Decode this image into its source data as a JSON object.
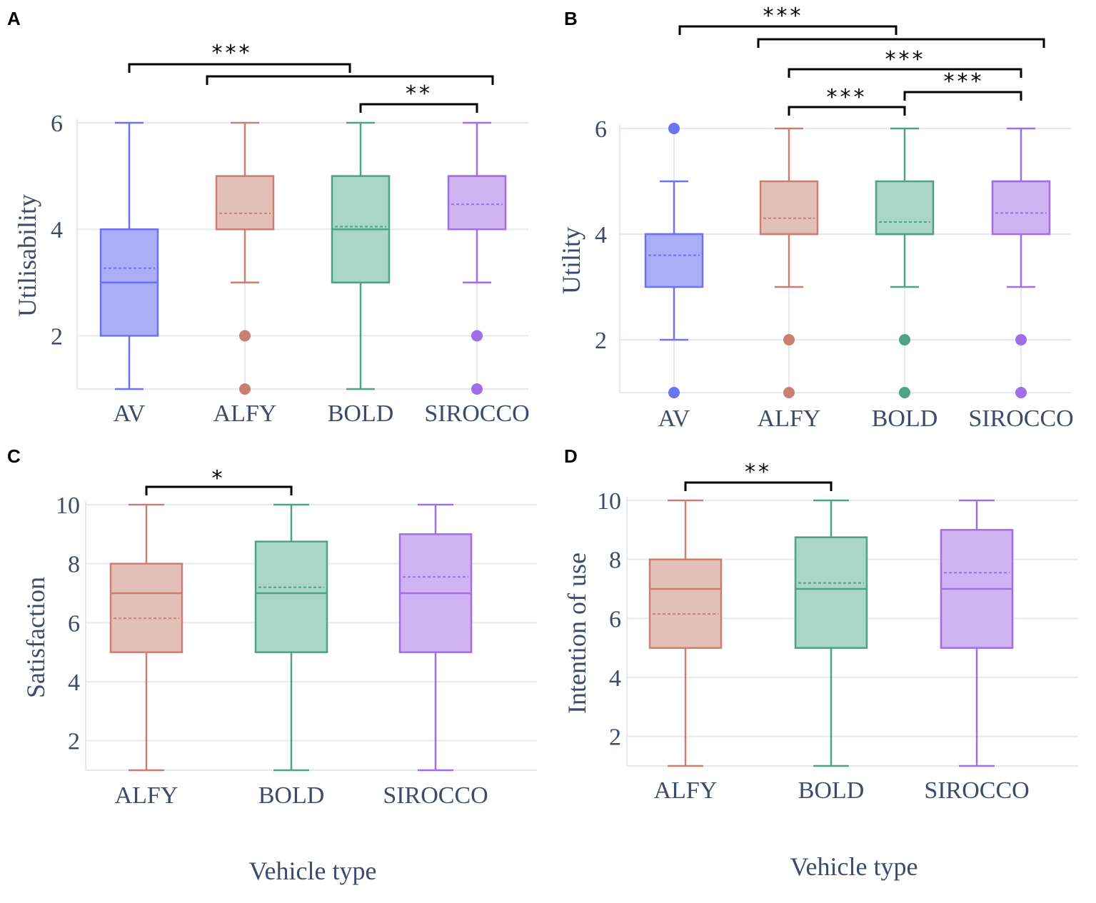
{
  "colors": {
    "AV": {
      "line": "#6b73f0",
      "fill": "#a9aef7"
    },
    "ALFY": {
      "line": "#c97f72",
      "fill": "#e2c0b8"
    },
    "BOLD": {
      "line": "#4fa187",
      "fill": "#a9d6c6"
    },
    "SIROCCO": {
      "line": "#a06ee6",
      "fill": "#cfb3f2"
    },
    "grid": "#e6e9f4",
    "text": "#3d4a6b"
  },
  "chart_data": [
    {
      "panel": "A",
      "type": "box",
      "ylabel": "Utilisability",
      "xlabel": "",
      "ylim": [
        1,
        6
      ],
      "yticks": [
        2,
        4,
        6
      ],
      "categories": [
        "AV",
        "ALFY",
        "BOLD",
        "SIROCCO"
      ],
      "boxes": [
        {
          "min": 1,
          "q1": 2,
          "median": 3,
          "q3": 4,
          "max": 6,
          "mean": 3.27,
          "outliers": []
        },
        {
          "min": 3,
          "q1": 4,
          "median": 4,
          "q3": 5,
          "max": 6,
          "mean": 4.3,
          "outliers": [
            2,
            1
          ]
        },
        {
          "min": 1,
          "q1": 3,
          "median": 4,
          "q3": 5,
          "max": 6,
          "mean": 4.05,
          "outliers": []
        },
        {
          "min": 3,
          "q1": 4,
          "median": 5,
          "q3": 5,
          "max": 6,
          "mean": 4.47,
          "outliers": [
            2,
            1
          ]
        }
      ],
      "significance": [
        {
          "from": "AV",
          "to": [
            "ALFY",
            "SIROCCO"
          ],
          "label": "***"
        },
        {
          "from": "BOLD",
          "to": "SIROCCO",
          "label": "**"
        }
      ]
    },
    {
      "panel": "B",
      "type": "box",
      "ylabel": "Utility",
      "xlabel": "",
      "ylim": [
        1,
        6
      ],
      "yticks": [
        2,
        4,
        6
      ],
      "categories": [
        "AV",
        "ALFY",
        "BOLD",
        "SIROCCO"
      ],
      "boxes": [
        {
          "min": 2,
          "q1": 3,
          "median": 4,
          "q3": 4,
          "max": 5,
          "mean": 3.6,
          "outliers": [
            6,
            1
          ]
        },
        {
          "min": 3,
          "q1": 4,
          "median": 4,
          "q3": 5,
          "max": 6,
          "mean": 4.3,
          "outliers": [
            2,
            1
          ]
        },
        {
          "min": 3,
          "q1": 4,
          "median": 4,
          "q3": 5,
          "max": 6,
          "mean": 4.23,
          "outliers": [
            2,
            1
          ]
        },
        {
          "min": 3,
          "q1": 4,
          "median": 5,
          "q3": 5,
          "max": 6,
          "mean": 4.4,
          "outliers": [
            2,
            1
          ]
        }
      ],
      "significance": [
        {
          "from": "AV",
          "to": [
            "ALFY",
            "SIROCCO"
          ],
          "label": "***"
        },
        {
          "from": "ALFY",
          "to": "SIROCCO",
          "label": "***"
        },
        {
          "from": "ALFY",
          "to": "BOLD",
          "label": "***"
        },
        {
          "from": "BOLD",
          "to": "SIROCCO",
          "label": "***"
        }
      ]
    },
    {
      "panel": "C",
      "type": "box",
      "ylabel": "Satisfaction",
      "xlabel": "Vehicle type",
      "ylim": [
        1,
        10
      ],
      "yticks": [
        2,
        4,
        6,
        8,
        10
      ],
      "categories": [
        "ALFY",
        "BOLD",
        "SIROCCO"
      ],
      "boxes": [
        {
          "min": 1,
          "q1": 5,
          "median": 7,
          "q3": 8,
          "max": 10,
          "mean": 6.15,
          "outliers": []
        },
        {
          "min": 1,
          "q1": 5,
          "median": 7,
          "q3": 8.75,
          "max": 10,
          "mean": 7.2,
          "outliers": []
        },
        {
          "min": 1,
          "q1": 5,
          "median": 7,
          "q3": 9,
          "max": 10,
          "mean": 7.55,
          "outliers": []
        }
      ],
      "significance": [
        {
          "from": "ALFY",
          "to": "BOLD",
          "label": "*"
        }
      ]
    },
    {
      "panel": "D",
      "type": "box",
      "ylabel": "Intention of use",
      "xlabel": "Vehicle type",
      "ylim": [
        1,
        10
      ],
      "yticks": [
        2,
        4,
        6,
        8,
        10
      ],
      "categories": [
        "ALFY",
        "BOLD",
        "SIROCCO"
      ],
      "boxes": [
        {
          "min": 1,
          "q1": 5,
          "median": 7,
          "q3": 8,
          "max": 10,
          "mean": 6.15,
          "outliers": []
        },
        {
          "min": 1,
          "q1": 5,
          "median": 7,
          "q3": 8.75,
          "max": 10,
          "mean": 7.2,
          "outliers": []
        },
        {
          "min": 1,
          "q1": 5,
          "median": 7,
          "q3": 9,
          "max": 10,
          "mean": 7.55,
          "outliers": []
        }
      ],
      "significance": [
        {
          "from": "ALFY",
          "to": "BOLD",
          "label": "**"
        }
      ]
    }
  ]
}
